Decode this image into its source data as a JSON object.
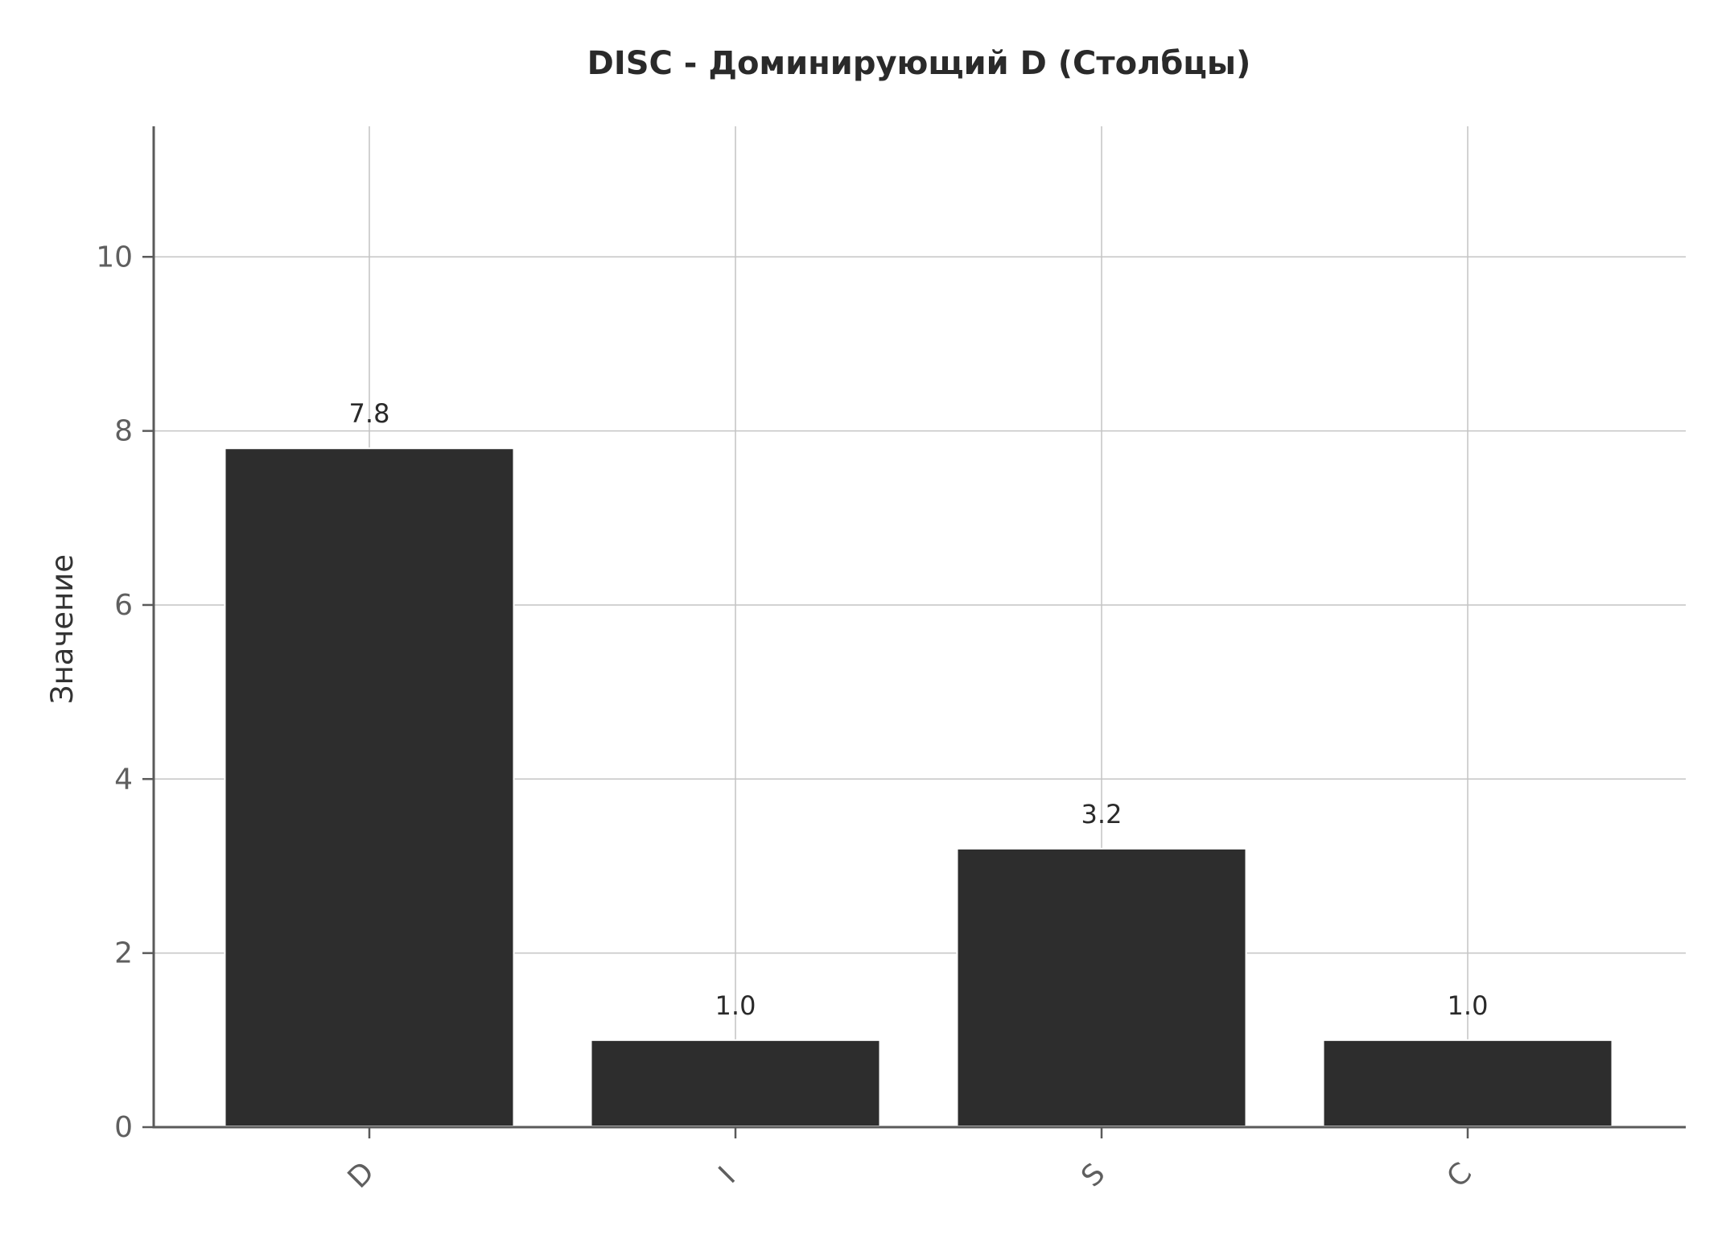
{
  "chart_data": {
    "type": "bar",
    "title": "DISC - Доминирующий D (Столбцы)",
    "xlabel": "",
    "ylabel": "Значение",
    "categories": [
      "D",
      "I",
      "S",
      "C"
    ],
    "values": [
      7.8,
      1.0,
      3.2,
      1.0
    ],
    "value_labels": [
      "7.8",
      "1.0",
      "3.2",
      "1.0"
    ],
    "ylim": [
      0,
      11.5
    ],
    "yticks": [
      0,
      2,
      4,
      6,
      8,
      10
    ],
    "grid": true,
    "bar_color": "#2d2d2d",
    "tick_label_rotation_deg": 45
  }
}
